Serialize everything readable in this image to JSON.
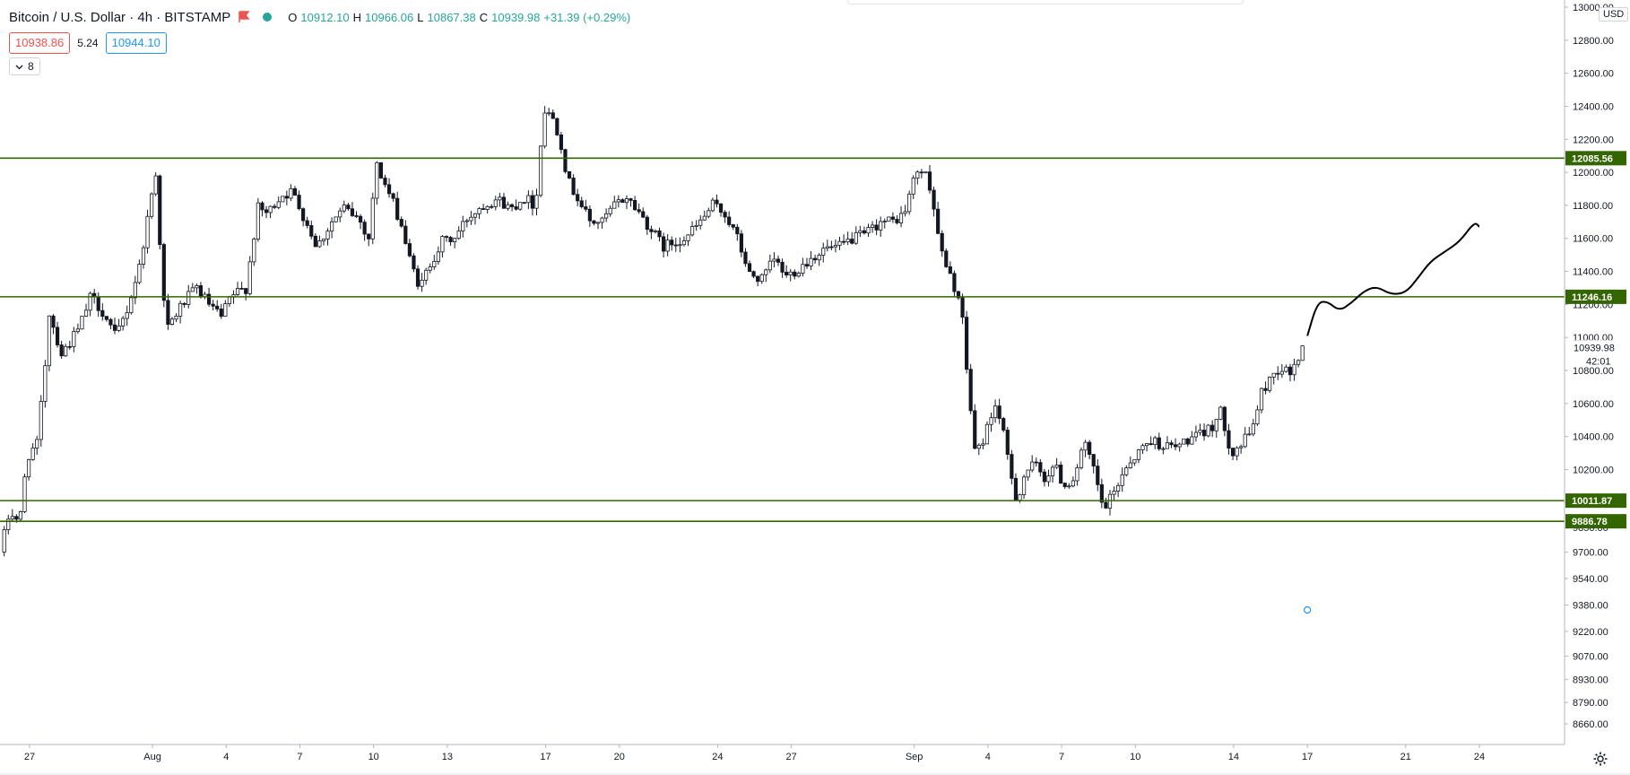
{
  "header": {
    "symbol": "Bitcoin / U.S. Dollar · 4h · BITSTAMP",
    "flag_icon": "flag-icon",
    "status_icon": "market-status-icon",
    "ohlc": {
      "open_label": "O",
      "open": "10912.10",
      "high_label": "H",
      "high": "10966.06",
      "low_label": "L",
      "low": "10867.38",
      "close_label": "C",
      "close": "10939.98",
      "change": "+31.39 (+0.29%)"
    },
    "bid": "10938.86",
    "spread": "5.24",
    "ask": "10944.10",
    "indicators_count": "8"
  },
  "axis": {
    "currency": "USD",
    "countdown": "42:01",
    "settings_icon": "gear-icon"
  },
  "colors": {
    "up": "#ffffff",
    "down": "#131722",
    "candle_border": "#131722",
    "level_line": "#336600",
    "level_label_bg": "#336600"
  },
  "chart_data": {
    "type": "candlestick",
    "title": "Bitcoin / U.S. Dollar · 4h · BITSTAMP",
    "xlabel": "",
    "ylabel": "",
    "ylim": [
      8520,
      13000
    ],
    "y_ticks": [
      13000,
      12800,
      12600,
      12400,
      12200,
      12000,
      11800,
      11600,
      11400,
      11200,
      11000,
      10800,
      10600,
      10400,
      10200,
      10000,
      9850,
      9700,
      9540,
      9380,
      9220,
      9070,
      8930,
      8790,
      8660
    ],
    "y_tick_labels": [
      "13000.00",
      "12800.00",
      "12600.00",
      "12400.00",
      "12200.00",
      "12000.00",
      "11800.00",
      "11600.00",
      "11400.00",
      "11200.00",
      "11000.00",
      "10800.00",
      "10600.00",
      "10400.00",
      "10200.00",
      "10000.00",
      "9850.00",
      "9700.00",
      "9540.00",
      "9380.00",
      "9220.00",
      "9070.00",
      "8930.00",
      "8790.00",
      "8660.00"
    ],
    "x_ticks": [
      {
        "label": "27",
        "day": 0
      },
      {
        "label": "Aug",
        "day": 5
      },
      {
        "label": "4",
        "day": 8
      },
      {
        "label": "7",
        "day": 11
      },
      {
        "label": "10",
        "day": 14
      },
      {
        "label": "13",
        "day": 17
      },
      {
        "label": "17",
        "day": 21
      },
      {
        "label": "20",
        "day": 24
      },
      {
        "label": "24",
        "day": 28
      },
      {
        "label": "27",
        "day": 31
      },
      {
        "label": "Sep",
        "day": 36
      },
      {
        "label": "4",
        "day": 39
      },
      {
        "label": "7",
        "day": 42
      },
      {
        "label": "10",
        "day": 45
      },
      {
        "label": "14",
        "day": 49
      },
      {
        "label": "17",
        "day": 52
      },
      {
        "label": "21",
        "day": 56
      },
      {
        "label": "24",
        "day": 59
      }
    ],
    "price_path": [
      [
        -1.2,
        9700
      ],
      [
        -0.8,
        9950
      ],
      [
        -0.4,
        9880
      ],
      [
        -0.1,
        10280
      ],
      [
        0.3,
        10350
      ],
      [
        0.6,
        10780
      ],
      [
        0.8,
        11150
      ],
      [
        1.3,
        10900
      ],
      [
        2.0,
        11050
      ],
      [
        2.5,
        11250
      ],
      [
        3.0,
        11150
      ],
      [
        3.5,
        11000
      ],
      [
        4.0,
        11180
      ],
      [
        4.5,
        11450
      ],
      [
        5.0,
        11900
      ],
      [
        5.2,
        12050
      ],
      [
        5.35,
        11350
      ],
      [
        5.6,
        11050
      ],
      [
        6.2,
        11200
      ],
      [
        6.8,
        11300
      ],
      [
        7.3,
        11200
      ],
      [
        7.8,
        11120
      ],
      [
        8.2,
        11250
      ],
      [
        8.8,
        11300
      ],
      [
        9.3,
        11780
      ],
      [
        9.7,
        11750
      ],
      [
        10.2,
        11860
      ],
      [
        10.7,
        11880
      ],
      [
        11.2,
        11720
      ],
      [
        11.7,
        11550
      ],
      [
        12.3,
        11700
      ],
      [
        12.8,
        11780
      ],
      [
        13.4,
        11720
      ],
      [
        13.8,
        11600
      ],
      [
        14.1,
        12050
      ],
      [
        14.6,
        11880
      ],
      [
        15.1,
        11700
      ],
      [
        15.5,
        11450
      ],
      [
        15.9,
        11300
      ],
      [
        16.3,
        11450
      ],
      [
        16.8,
        11580
      ],
      [
        17.3,
        11600
      ],
      [
        17.8,
        11720
      ],
      [
        18.4,
        11800
      ],
      [
        19.0,
        11840
      ],
      [
        19.6,
        11780
      ],
      [
        20.1,
        11850
      ],
      [
        20.6,
        11800
      ],
      [
        20.9,
        12380
      ],
      [
        21.3,
        12330
      ],
      [
        21.6,
        12200
      ],
      [
        21.9,
        11950
      ],
      [
        22.3,
        11850
      ],
      [
        22.8,
        11700
      ],
      [
        23.3,
        11700
      ],
      [
        23.8,
        11800
      ],
      [
        24.3,
        11850
      ],
      [
        24.8,
        11760
      ],
      [
        25.3,
        11650
      ],
      [
        25.8,
        11550
      ],
      [
        26.3,
        11580
      ],
      [
        26.8,
        11620
      ],
      [
        27.3,
        11700
      ],
      [
        27.8,
        11800
      ],
      [
        28.3,
        11750
      ],
      [
        28.8,
        11600
      ],
      [
        29.3,
        11380
      ],
      [
        29.8,
        11350
      ],
      [
        30.3,
        11470
      ],
      [
        30.8,
        11370
      ],
      [
        31.3,
        11420
      ],
      [
        31.8,
        11480
      ],
      [
        32.4,
        11540
      ],
      [
        32.9,
        11540
      ],
      [
        33.5,
        11600
      ],
      [
        34.0,
        11620
      ],
      [
        34.6,
        11700
      ],
      [
        35.1,
        11700
      ],
      [
        35.6,
        11750
      ],
      [
        35.9,
        11920
      ],
      [
        36.2,
        12030
      ],
      [
        36.6,
        11950
      ],
      [
        36.9,
        11700
      ],
      [
        37.2,
        11450
      ],
      [
        37.6,
        11320
      ],
      [
        37.9,
        11200
      ],
      [
        38.2,
        10700
      ],
      [
        38.5,
        10280
      ],
      [
        38.9,
        10420
      ],
      [
        39.3,
        10600
      ],
      [
        39.6,
        10430
      ],
      [
        39.9,
        10200
      ],
      [
        40.2,
        10000
      ],
      [
        40.5,
        10180
      ],
      [
        40.9,
        10230
      ],
      [
        41.3,
        10150
      ],
      [
        41.7,
        10230
      ],
      [
        42.1,
        10100
      ],
      [
        42.5,
        10150
      ],
      [
        42.9,
        10360
      ],
      [
        43.3,
        10200
      ],
      [
        43.7,
        9950
      ],
      [
        44.1,
        10050
      ],
      [
        44.6,
        10220
      ],
      [
        45.1,
        10300
      ],
      [
        45.6,
        10380
      ],
      [
        46.1,
        10350
      ],
      [
        46.6,
        10330
      ],
      [
        47.1,
        10380
      ],
      [
        47.6,
        10400
      ],
      [
        48.1,
        10460
      ],
      [
        48.5,
        10550
      ],
      [
        48.9,
        10300
      ],
      [
        49.3,
        10350
      ],
      [
        49.7,
        10430
      ],
      [
        50.1,
        10650
      ],
      [
        50.5,
        10760
      ],
      [
        50.9,
        10820
      ],
      [
        51.3,
        10780
      ],
      [
        51.7,
        10900
      ],
      [
        51.9,
        10939.98
      ]
    ],
    "projection": [
      [
        52.0,
        11010
      ],
      [
        52.4,
        11210
      ],
      [
        52.8,
        11220
      ],
      [
        53.3,
        11160
      ],
      [
        53.8,
        11210
      ],
      [
        54.3,
        11280
      ],
      [
        54.8,
        11310
      ],
      [
        55.4,
        11260
      ],
      [
        56.0,
        11270
      ],
      [
        56.5,
        11360
      ],
      [
        57.0,
        11460
      ],
      [
        57.6,
        11520
      ],
      [
        58.2,
        11580
      ],
      [
        58.8,
        11700
      ],
      [
        59.0,
        11670
      ]
    ],
    "horizontal_levels": [
      {
        "value": 12085.56,
        "label": "12085.56"
      },
      {
        "value": 11246.16,
        "label": "11246.16"
      },
      {
        "value": 10011.87,
        "label": "10011.87"
      },
      {
        "value": 9886.78,
        "label": "9886.78"
      }
    ],
    "last_price": {
      "value": 10939.98,
      "label": "10939.98"
    },
    "marker_point": {
      "day": 52.0,
      "price": 9350
    }
  }
}
